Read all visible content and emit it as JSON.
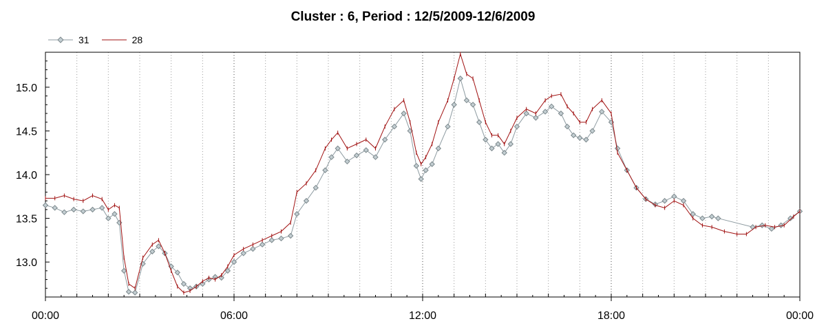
{
  "chart_data": {
    "type": "line",
    "title": "Cluster : 6, Period : 12/5/2009-12/6/2009",
    "xlabel": "",
    "ylabel": "",
    "x_ticks": [
      "00:00",
      "06:00",
      "12:00",
      "18:00",
      "00:00"
    ],
    "y_ticks": [
      "13.0",
      "13.5",
      "14.0",
      "14.5",
      "15.0"
    ],
    "ylim": [
      12.6,
      15.4
    ],
    "xlim_hours": [
      0,
      24
    ],
    "grid": "vertical dotted lines at each 2 hours, stronger at 6-hour ticks",
    "legend_position": "top-left",
    "series": [
      {
        "name": "31",
        "color": "#8c9aa0",
        "marker": "diamond",
        "points": [
          [
            0.0,
            13.65
          ],
          [
            0.3,
            13.62
          ],
          [
            0.6,
            13.57
          ],
          [
            0.9,
            13.6
          ],
          [
            1.2,
            13.58
          ],
          [
            1.5,
            13.6
          ],
          [
            1.8,
            13.62
          ],
          [
            2.0,
            13.5
          ],
          [
            2.2,
            13.55
          ],
          [
            2.35,
            13.45
          ],
          [
            2.5,
            12.9
          ],
          [
            2.65,
            12.66
          ],
          [
            2.85,
            12.65
          ],
          [
            3.1,
            12.98
          ],
          [
            3.4,
            13.12
          ],
          [
            3.6,
            13.18
          ],
          [
            3.8,
            13.1
          ],
          [
            4.0,
            12.95
          ],
          [
            4.2,
            12.88
          ],
          [
            4.4,
            12.75
          ],
          [
            4.6,
            12.7
          ],
          [
            4.8,
            12.72
          ],
          [
            5.0,
            12.75
          ],
          [
            5.2,
            12.8
          ],
          [
            5.4,
            12.83
          ],
          [
            5.6,
            12.82
          ],
          [
            5.8,
            12.9
          ],
          [
            6.0,
            13.0
          ],
          [
            6.3,
            13.1
          ],
          [
            6.6,
            13.15
          ],
          [
            6.9,
            13.2
          ],
          [
            7.2,
            13.25
          ],
          [
            7.5,
            13.27
          ],
          [
            7.8,
            13.3
          ],
          [
            8.0,
            13.55
          ],
          [
            8.3,
            13.7
          ],
          [
            8.6,
            13.85
          ],
          [
            8.9,
            14.05
          ],
          [
            9.1,
            14.2
          ],
          [
            9.3,
            14.3
          ],
          [
            9.6,
            14.15
          ],
          [
            9.9,
            14.22
          ],
          [
            10.2,
            14.28
          ],
          [
            10.5,
            14.2
          ],
          [
            10.8,
            14.4
          ],
          [
            11.1,
            14.55
          ],
          [
            11.4,
            14.7
          ],
          [
            11.6,
            14.5
          ],
          [
            11.8,
            14.1
          ],
          [
            11.95,
            13.95
          ],
          [
            12.1,
            14.05
          ],
          [
            12.3,
            14.12
          ],
          [
            12.5,
            14.3
          ],
          [
            12.8,
            14.55
          ],
          [
            13.0,
            14.8
          ],
          [
            13.2,
            15.1
          ],
          [
            13.4,
            14.85
          ],
          [
            13.6,
            14.8
          ],
          [
            13.8,
            14.6
          ],
          [
            14.0,
            14.4
          ],
          [
            14.2,
            14.3
          ],
          [
            14.4,
            14.35
          ],
          [
            14.6,
            14.25
          ],
          [
            14.8,
            14.35
          ],
          [
            15.0,
            14.55
          ],
          [
            15.3,
            14.7
          ],
          [
            15.6,
            14.65
          ],
          [
            15.9,
            14.72
          ],
          [
            16.1,
            14.78
          ],
          [
            16.4,
            14.7
          ],
          [
            16.6,
            14.55
          ],
          [
            16.8,
            14.45
          ],
          [
            17.0,
            14.42
          ],
          [
            17.2,
            14.4
          ],
          [
            17.4,
            14.5
          ],
          [
            17.7,
            14.72
          ],
          [
            18.0,
            14.6
          ],
          [
            18.2,
            14.3
          ],
          [
            18.5,
            14.05
          ],
          [
            18.8,
            13.85
          ],
          [
            19.1,
            13.72
          ],
          [
            19.4,
            13.66
          ],
          [
            19.7,
            13.7
          ],
          [
            20.0,
            13.75
          ],
          [
            20.3,
            13.7
          ],
          [
            20.6,
            13.55
          ],
          [
            20.9,
            13.5
          ],
          [
            21.2,
            13.52
          ],
          [
            21.4,
            13.5
          ],
          [
            22.5,
            13.4
          ],
          [
            22.8,
            13.42
          ],
          [
            23.1,
            13.38
          ],
          [
            23.4,
            13.42
          ],
          [
            23.7,
            13.5
          ],
          [
            24.0,
            13.58
          ]
        ]
      },
      {
        "name": "28",
        "color": "#a01010",
        "marker": "tick",
        "points": [
          [
            0.0,
            13.73
          ],
          [
            0.3,
            13.73
          ],
          [
            0.6,
            13.76
          ],
          [
            0.9,
            13.72
          ],
          [
            1.2,
            13.7
          ],
          [
            1.5,
            13.76
          ],
          [
            1.8,
            13.72
          ],
          [
            2.0,
            13.6
          ],
          [
            2.2,
            13.65
          ],
          [
            2.35,
            13.62
          ],
          [
            2.5,
            13.05
          ],
          [
            2.65,
            12.75
          ],
          [
            2.85,
            12.7
          ],
          [
            3.1,
            13.05
          ],
          [
            3.4,
            13.2
          ],
          [
            3.6,
            13.25
          ],
          [
            3.8,
            13.1
          ],
          [
            4.0,
            12.9
          ],
          [
            4.2,
            12.72
          ],
          [
            4.4,
            12.65
          ],
          [
            4.6,
            12.67
          ],
          [
            4.8,
            12.72
          ],
          [
            5.0,
            12.78
          ],
          [
            5.2,
            12.82
          ],
          [
            5.4,
            12.8
          ],
          [
            5.6,
            12.85
          ],
          [
            5.8,
            12.95
          ],
          [
            6.0,
            13.08
          ],
          [
            6.3,
            13.15
          ],
          [
            6.6,
            13.2
          ],
          [
            6.9,
            13.25
          ],
          [
            7.2,
            13.3
          ],
          [
            7.5,
            13.35
          ],
          [
            7.8,
            13.45
          ],
          [
            8.0,
            13.8
          ],
          [
            8.3,
            13.9
          ],
          [
            8.6,
            14.05
          ],
          [
            8.9,
            14.3
          ],
          [
            9.1,
            14.4
          ],
          [
            9.3,
            14.48
          ],
          [
            9.6,
            14.3
          ],
          [
            9.9,
            14.35
          ],
          [
            10.2,
            14.4
          ],
          [
            10.5,
            14.3
          ],
          [
            10.8,
            14.55
          ],
          [
            11.1,
            14.75
          ],
          [
            11.4,
            14.85
          ],
          [
            11.6,
            14.6
          ],
          [
            11.8,
            14.25
          ],
          [
            11.95,
            14.12
          ],
          [
            12.1,
            14.2
          ],
          [
            12.3,
            14.35
          ],
          [
            12.5,
            14.6
          ],
          [
            12.8,
            14.85
          ],
          [
            13.0,
            15.1
          ],
          [
            13.2,
            15.38
          ],
          [
            13.4,
            15.15
          ],
          [
            13.6,
            15.1
          ],
          [
            13.8,
            14.85
          ],
          [
            14.0,
            14.6
          ],
          [
            14.2,
            14.45
          ],
          [
            14.4,
            14.45
          ],
          [
            14.6,
            14.35
          ],
          [
            14.8,
            14.5
          ],
          [
            15.0,
            14.65
          ],
          [
            15.3,
            14.75
          ],
          [
            15.6,
            14.7
          ],
          [
            15.9,
            14.85
          ],
          [
            16.1,
            14.9
          ],
          [
            16.4,
            14.92
          ],
          [
            16.6,
            14.78
          ],
          [
            16.8,
            14.7
          ],
          [
            17.0,
            14.6
          ],
          [
            17.2,
            14.6
          ],
          [
            17.4,
            14.75
          ],
          [
            17.7,
            14.85
          ],
          [
            18.0,
            14.7
          ],
          [
            18.2,
            14.25
          ],
          [
            18.5,
            14.05
          ],
          [
            18.8,
            13.85
          ],
          [
            19.1,
            13.72
          ],
          [
            19.4,
            13.65
          ],
          [
            19.7,
            13.62
          ],
          [
            20.0,
            13.7
          ],
          [
            20.3,
            13.65
          ],
          [
            20.6,
            13.5
          ],
          [
            20.9,
            13.42
          ],
          [
            21.2,
            13.4
          ],
          [
            21.6,
            13.35
          ],
          [
            22.0,
            13.32
          ],
          [
            22.3,
            13.32
          ],
          [
            22.6,
            13.4
          ],
          [
            22.9,
            13.42
          ],
          [
            23.2,
            13.4
          ],
          [
            23.5,
            13.42
          ],
          [
            23.8,
            13.52
          ],
          [
            24.0,
            13.58
          ]
        ]
      }
    ]
  }
}
